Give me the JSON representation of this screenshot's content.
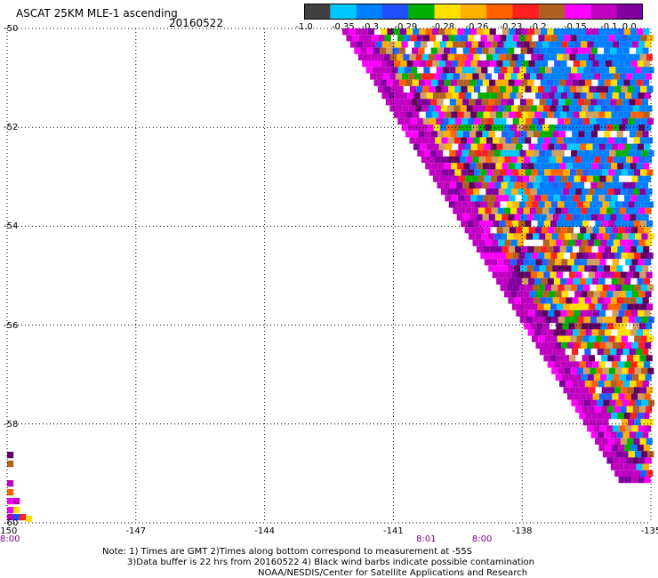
{
  "header": {
    "title": "ASCAT 25KM MLE-1 ascending",
    "date": "20160522"
  },
  "colorbar": {
    "colors": [
      "#404040",
      "#00c8ff",
      "#0080ff",
      "#2050ff",
      "#00b000",
      "#ffe000",
      "#ffb000",
      "#ff6000",
      "#ff2020",
      "#b06020",
      "#ff00ff",
      "#c000c0",
      "#8000a0"
    ],
    "labels": [
      "-1.0",
      "-0.35",
      "-0.3",
      "-0.29",
      "-0.28",
      "-0.26",
      "-0.23",
      "-0.2",
      "-0.15",
      "-0.1",
      "0.0"
    ],
    "label_positions": [
      0.0,
      0.115,
      0.195,
      0.3,
      0.41,
      0.51,
      0.61,
      0.69,
      0.8,
      0.9,
      0.96
    ]
  },
  "map_data": {
    "lat_labels": [
      "-50",
      "-52",
      "-54",
      "-56",
      "-58",
      "-60"
    ],
    "lat_values": [
      -50,
      -52,
      -54,
      -56,
      -58,
      -60
    ],
    "lon_labels": [
      "-150",
      "-147",
      "-144",
      "-141",
      "-138",
      "-135"
    ],
    "lon_values": [
      -150,
      -147,
      -144,
      -141,
      -138,
      -135
    ],
    "lon_range": [
      -150,
      -135
    ],
    "lat_range": [
      -50,
      -60
    ],
    "time_labels": [
      {
        "text": "8:00",
        "lon": -150
      },
      {
        "text": "8:01",
        "lon": -140.3
      },
      {
        "text": "8:00",
        "lon": -139.0
      }
    ],
    "palette": [
      "#0080ff",
      "#2060ff",
      "#00b000",
      "#ffe000",
      "#ffb000",
      "#ff6000",
      "#ff2020",
      "#b06020",
      "#ff00ff",
      "#c000c0",
      "#8000a0",
      "#ffffff",
      "#00c8ff",
      "#600060",
      "#d0a060"
    ],
    "grid": "dotted"
  },
  "notes": {
    "line1": "Note: 1) Times are GMT 2)Times along bottom correspond to measurement at -55S",
    "line2": "3)Data buffer is 22 hrs from 20160522 4) Black wind barbs indicate possible contamination",
    "line3": "NOAA/NESDIS/Center for Satellite Applications and Research"
  }
}
